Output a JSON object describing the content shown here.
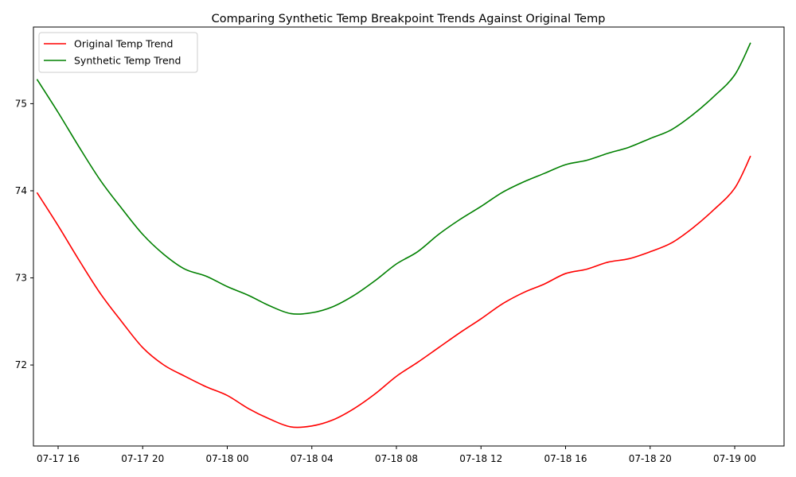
{
  "chart_data": {
    "type": "line",
    "title": "Comparing Synthetic Temp Breakpoint Trends Against Original Temp",
    "xlabel": "",
    "ylabel": "",
    "x_axis": {
      "kind": "datetime",
      "range": [
        "2020-07-17 14:50",
        "2020-07-19 02:20"
      ],
      "tick_values": [
        "2020-07-17 16:00",
        "2020-07-17 20:00",
        "2020-07-18 00:00",
        "2020-07-18 04:00",
        "2020-07-18 08:00",
        "2020-07-18 12:00",
        "2020-07-18 16:00",
        "2020-07-18 20:00",
        "2020-07-19 00:00"
      ],
      "tick_labels": [
        "07-17 16",
        "07-17 20",
        "07-18 00",
        "07-18 04",
        "07-18 08",
        "07-18 12",
        "07-18 16",
        "07-18 20",
        "07-19 00"
      ]
    },
    "y_axis": {
      "range": [
        71.07,
        75.88
      ],
      "ticks": [
        72,
        73,
        74,
        75
      ],
      "tick_labels": [
        "72",
        "73",
        "74",
        "75"
      ]
    },
    "legend": {
      "placement": "top-left"
    },
    "grid": false,
    "series": [
      {
        "name": "Original Temp Trend",
        "color": "#ff0000",
        "points": [
          [
            "2020-07-17 15:00",
            73.98
          ],
          [
            "2020-07-17 16:00",
            73.6
          ],
          [
            "2020-07-17 17:00",
            73.2
          ],
          [
            "2020-07-17 18:00",
            72.82
          ],
          [
            "2020-07-17 19:00",
            72.5
          ],
          [
            "2020-07-17 20:00",
            72.2
          ],
          [
            "2020-07-17 21:00",
            72.0
          ],
          [
            "2020-07-17 22:00",
            71.87
          ],
          [
            "2020-07-17 23:00",
            71.75
          ],
          [
            "2020-07-18 00:00",
            71.65
          ],
          [
            "2020-07-18 01:00",
            71.5
          ],
          [
            "2020-07-18 02:00",
            71.38
          ],
          [
            "2020-07-18 03:00",
            71.29
          ],
          [
            "2020-07-18 04:00",
            71.3
          ],
          [
            "2020-07-18 05:00",
            71.37
          ],
          [
            "2020-07-18 06:00",
            71.5
          ],
          [
            "2020-07-18 07:00",
            71.67
          ],
          [
            "2020-07-18 08:00",
            71.87
          ],
          [
            "2020-07-18 09:00",
            72.03
          ],
          [
            "2020-07-18 10:00",
            72.2
          ],
          [
            "2020-07-18 11:00",
            72.37
          ],
          [
            "2020-07-18 12:00",
            72.53
          ],
          [
            "2020-07-18 13:00",
            72.7
          ],
          [
            "2020-07-18 14:00",
            72.83
          ],
          [
            "2020-07-18 15:00",
            72.93
          ],
          [
            "2020-07-18 16:00",
            73.05
          ],
          [
            "2020-07-18 17:00",
            73.1
          ],
          [
            "2020-07-18 18:00",
            73.18
          ],
          [
            "2020-07-18 19:00",
            73.22
          ],
          [
            "2020-07-18 20:00",
            73.3
          ],
          [
            "2020-07-18 21:00",
            73.4
          ],
          [
            "2020-07-18 22:00",
            73.57
          ],
          [
            "2020-07-18 23:00",
            73.78
          ],
          [
            "2020-07-19 00:00",
            74.03
          ],
          [
            "2020-07-19 00:45",
            74.4
          ]
        ]
      },
      {
        "name": "Synthetic Temp Trend",
        "color": "#008000",
        "points": [
          [
            "2020-07-17 15:00",
            75.28
          ],
          [
            "2020-07-17 16:00",
            74.9
          ],
          [
            "2020-07-17 17:00",
            74.5
          ],
          [
            "2020-07-17 18:00",
            74.12
          ],
          [
            "2020-07-17 19:00",
            73.8
          ],
          [
            "2020-07-17 20:00",
            73.5
          ],
          [
            "2020-07-17 21:00",
            73.27
          ],
          [
            "2020-07-17 22:00",
            73.1
          ],
          [
            "2020-07-17 23:00",
            73.02
          ],
          [
            "2020-07-18 00:00",
            72.9
          ],
          [
            "2020-07-18 01:00",
            72.8
          ],
          [
            "2020-07-18 02:00",
            72.68
          ],
          [
            "2020-07-18 03:00",
            72.59
          ],
          [
            "2020-07-18 04:00",
            72.6
          ],
          [
            "2020-07-18 05:00",
            72.67
          ],
          [
            "2020-07-18 06:00",
            72.8
          ],
          [
            "2020-07-18 07:00",
            72.97
          ],
          [
            "2020-07-18 08:00",
            73.16
          ],
          [
            "2020-07-18 09:00",
            73.3
          ],
          [
            "2020-07-18 10:00",
            73.5
          ],
          [
            "2020-07-18 11:00",
            73.67
          ],
          [
            "2020-07-18 12:00",
            73.82
          ],
          [
            "2020-07-18 13:00",
            73.98
          ],
          [
            "2020-07-18 14:00",
            74.1
          ],
          [
            "2020-07-18 15:00",
            74.2
          ],
          [
            "2020-07-18 16:00",
            74.3
          ],
          [
            "2020-07-18 17:00",
            74.35
          ],
          [
            "2020-07-18 18:00",
            74.43
          ],
          [
            "2020-07-18 19:00",
            74.5
          ],
          [
            "2020-07-18 20:00",
            74.6
          ],
          [
            "2020-07-18 21:00",
            74.7
          ],
          [
            "2020-07-18 22:00",
            74.87
          ],
          [
            "2020-07-18 23:00",
            75.08
          ],
          [
            "2020-07-19 00:00",
            75.33
          ],
          [
            "2020-07-19 00:45",
            75.7
          ]
        ]
      }
    ]
  }
}
